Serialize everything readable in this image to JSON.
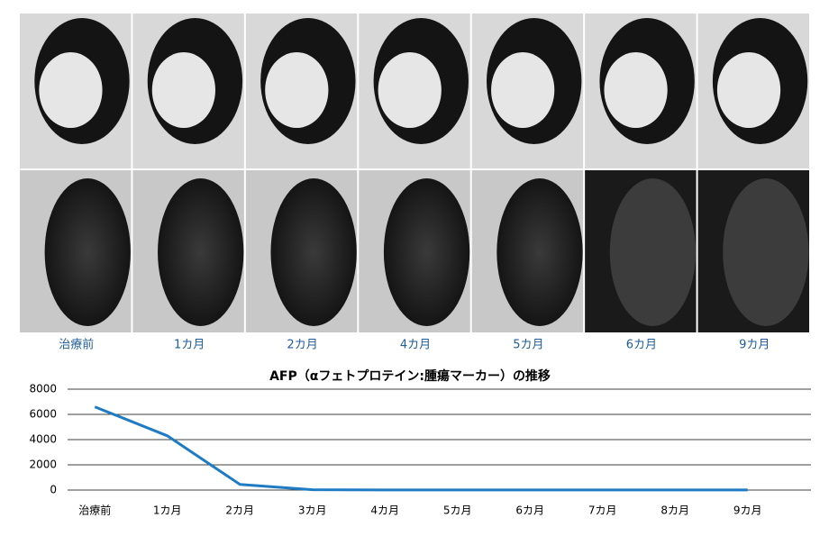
{
  "ct_images": {
    "labels": [
      "治療前",
      "1カ月",
      "2カ月",
      "4カ月",
      "5カ月",
      "6カ月",
      "9カ月"
    ]
  },
  "chart_data": {
    "type": "line",
    "title": "AFP（αフェトプロテイン:腫瘍マーカー）の推移",
    "categories": [
      "治療前",
      "1カ月",
      "2カ月",
      "3カ月",
      "4カ月",
      "5カ月",
      "6カ月",
      "7カ月",
      "8カ月",
      "9カ月"
    ],
    "values": [
      6600,
      4300,
      450,
      30,
      10,
      10,
      10,
      10,
      10,
      10
    ],
    "color": "#1f7bc4",
    "ylim": [
      0,
      8000
    ],
    "yticks": [
      0,
      2000,
      4000,
      6000,
      8000
    ],
    "grid": true
  }
}
